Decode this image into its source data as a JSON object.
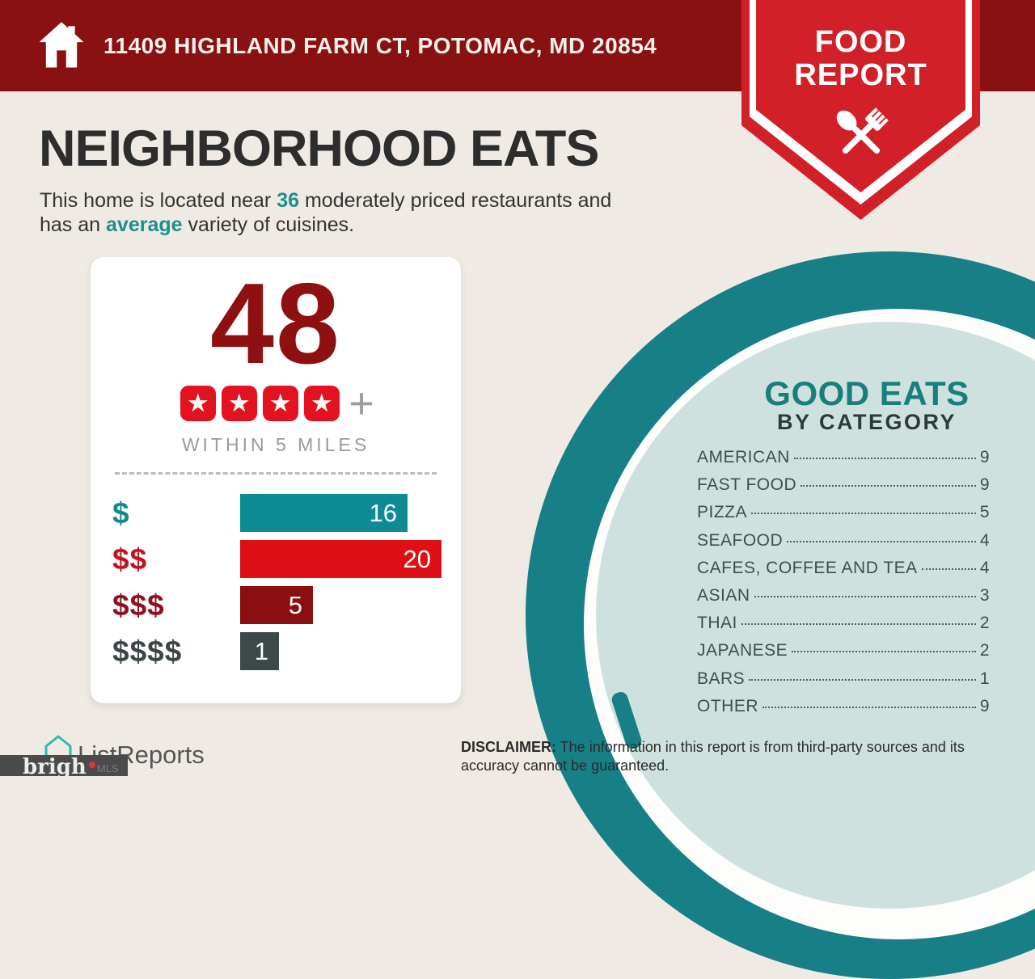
{
  "chart_data": [
    {
      "type": "bar",
      "orientation": "horizontal",
      "title": "48 four-star+ restaurants within 5 miles, by price tier",
      "categories": [
        "$",
        "$$",
        "$$$",
        "$$$$"
      ],
      "values": [
        16,
        20,
        5,
        1
      ],
      "colors": [
        "#0E8A94",
        "#DE1016",
        "#8B0E10",
        "#3D4848"
      ],
      "xlim": [
        0,
        20
      ],
      "grid": false,
      "value_labels": true
    },
    {
      "type": "table",
      "title": "GOOD EATS BY CATEGORY",
      "categories": [
        "AMERICAN",
        "FAST FOOD",
        "PIZZA",
        "SEAFOOD",
        "CAFES, COFFEE AND TEA",
        "ASIAN",
        "THAI",
        "JAPANESE",
        "BARS",
        "OTHER"
      ],
      "values": [
        9,
        9,
        5,
        4,
        4,
        3,
        2,
        2,
        1,
        9
      ]
    }
  ],
  "header": {
    "address": "11409 HIGHLAND FARM CT, POTOMAC, MD 20854",
    "bg_color": "#8A1111",
    "icon": "home-icon"
  },
  "ribbon": {
    "line1": "FOOD",
    "line2": "REPORT",
    "color": "#D22028",
    "icon": "spoon-fork-icon"
  },
  "page": {
    "title": "NEIGHBORHOOD EATS",
    "bg_color": "#EFEAE4",
    "subtitle": {
      "line1_pre": "This home is located near ",
      "count": "36",
      "line1_post": " moderately priced restaurants and",
      "line2_pre": "has an ",
      "accent": "average",
      "line2_post": " variety of cuisines.",
      "accent_color": "#1E8F8B"
    }
  },
  "score_card": {
    "count": "48",
    "count_color": "#8E1010",
    "stars": 4,
    "star_color": "#E31220",
    "plus": "+",
    "caption": "WITHIN 5 MILES",
    "rows": [
      {
        "label": "$",
        "value": 16,
        "label_color": "#0F8A8E",
        "bar_color": "#0E8A94"
      },
      {
        "label": "$$",
        "value": 20,
        "label_color": "#C41320",
        "bar_color": "#DE1016"
      },
      {
        "label": "$$$",
        "value": 5,
        "label_color": "#8E1021",
        "bar_color": "#8B0E10"
      },
      {
        "label": "$$$$",
        "value": 1,
        "label_color": "#3C4646",
        "bar_color": "#3D4848"
      }
    ]
  },
  "good_eats": {
    "title": "GOOD EATS",
    "subtitle": "BY CATEGORY",
    "title_color": "#17807C",
    "panel_color": "#177F86",
    "panel_fill": "#CFE1DF",
    "items": [
      {
        "label": "AMERICAN",
        "value": 9
      },
      {
        "label": "FAST FOOD",
        "value": 9
      },
      {
        "label": "PIZZA",
        "value": 5
      },
      {
        "label": "SEAFOOD",
        "value": 4
      },
      {
        "label": "CAFES, COFFEE AND TEA",
        "value": 4
      },
      {
        "label": "ASIAN",
        "value": 3
      },
      {
        "label": "THAI",
        "value": 2
      },
      {
        "label": "JAPANESE",
        "value": 2
      },
      {
        "label": "BARS",
        "value": 1
      },
      {
        "label": "OTHER",
        "value": 9
      }
    ]
  },
  "footer": {
    "brand": "ListReports",
    "watermark_text": "brigh",
    "watermark_suffix": "MLS",
    "disclaimer_label": "DISCLAIMER:",
    "disclaimer_text": " The information in this report is from third-party sources and its accuracy cannot be guaranteed."
  }
}
